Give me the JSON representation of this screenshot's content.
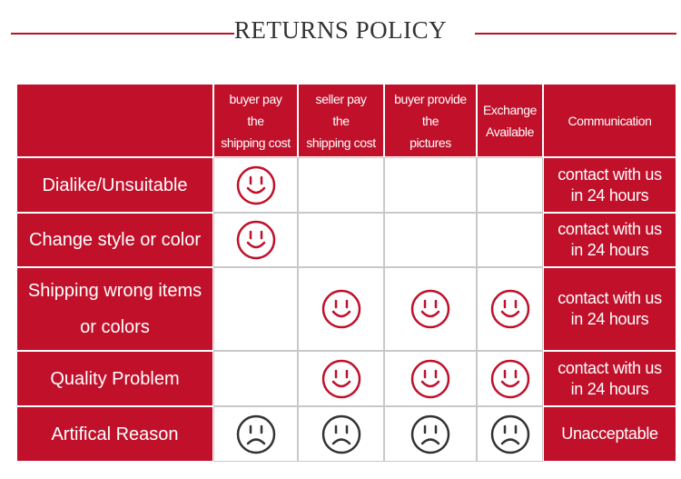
{
  "header": {
    "title": "RETURNS POLICY"
  },
  "table": {
    "columns": [
      [
        "buyer pay",
        "the",
        "shipping cost"
      ],
      [
        "seller pay",
        "the",
        "shipping cost"
      ],
      [
        "buyer provide",
        "the",
        "pictures"
      ],
      [
        "Exchange",
        "Available"
      ],
      [
        "Communication"
      ]
    ],
    "rows": [
      {
        "label": [
          "Dialike/Unsuitable"
        ],
        "communication": [
          "contact with us",
          "in 24 hours"
        ]
      },
      {
        "label": [
          "Change style or color"
        ],
        "communication": [
          "contact with us",
          "in 24 hours"
        ]
      },
      {
        "label": [
          "Shipping wrong items",
          "or colors"
        ],
        "communication": [
          "contact with us",
          "in 24 hours"
        ]
      },
      {
        "label": [
          "Quality Problem"
        ],
        "communication": [
          "contact with us",
          "in 24 hours"
        ]
      },
      {
        "label": [
          "Artifical Reason"
        ],
        "communication": [
          "Unacceptable"
        ]
      }
    ]
  }
}
